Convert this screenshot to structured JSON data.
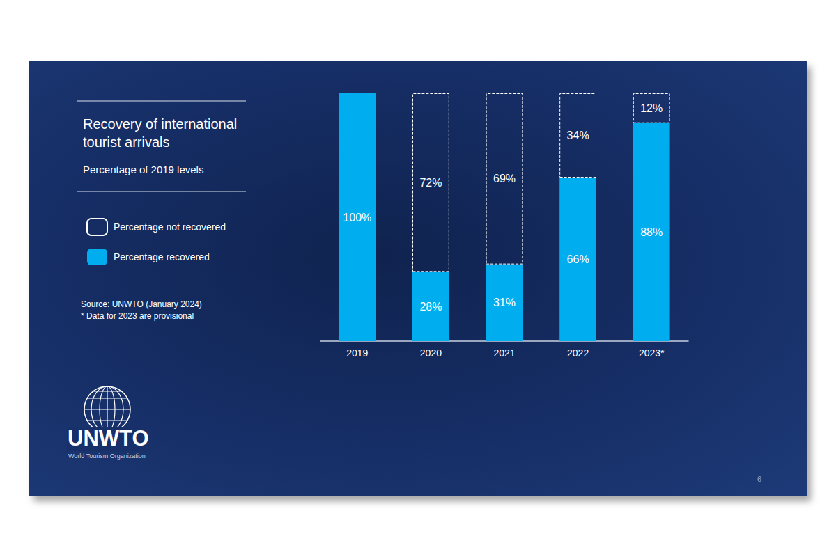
{
  "chart_data": {
    "type": "bar",
    "title": "Recovery of international tourist arrivals",
    "subtitle": "Percentage of 2019 levels",
    "categories": [
      "2019",
      "2020",
      "2021",
      "2022",
      "2023*"
    ],
    "series": [
      {
        "name": "Percentage not recovered",
        "color": "#ffffff",
        "line_style": "dashed",
        "values": [
          null,
          72,
          69,
          34,
          12
        ],
        "value_labels": [
          null,
          "72%",
          "69%",
          "34%",
          "12%"
        ]
      },
      {
        "name": "Percentage recovered",
        "color": "#00aeef",
        "values": [
          100,
          28,
          31,
          66,
          88
        ],
        "value_labels": [
          "100%",
          "28%",
          "31%",
          "66%",
          "88%"
        ]
      }
    ],
    "ylim": [
      0,
      100
    ],
    "stacked": true,
    "data_labels": true,
    "tick_labels": "x",
    "grid": false,
    "legend": "left"
  },
  "source": "Source: UNWTO (January 2024)",
  "note": "* Data for 2023 are provisional",
  "logo": {
    "name": "UNWTO",
    "caption": "World Tourism Organization"
  },
  "page_number": "6"
}
